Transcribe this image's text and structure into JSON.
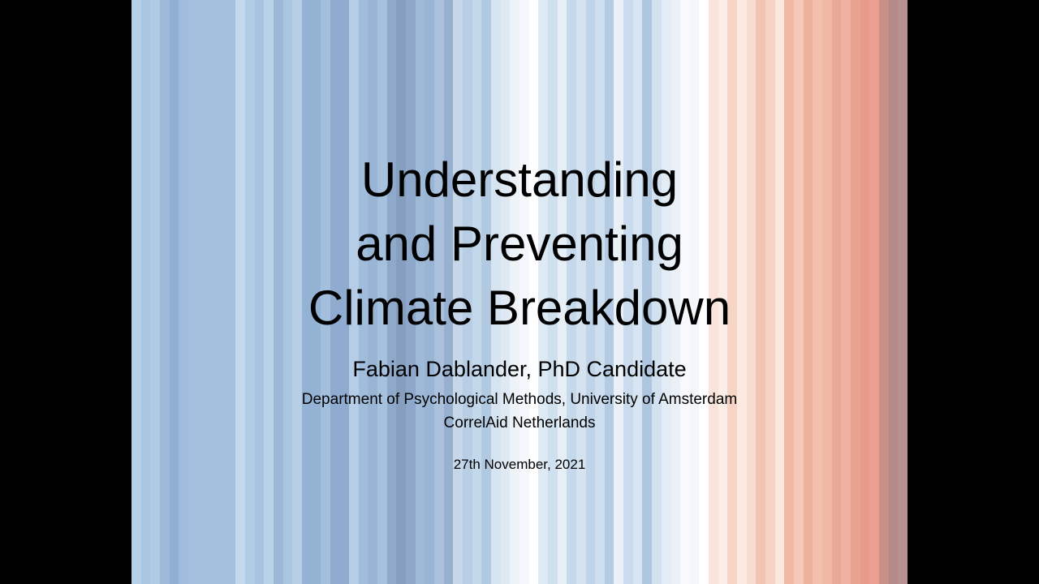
{
  "slide": {
    "title_lines": [
      "Understanding",
      "and Preventing",
      "Climate Breakdown"
    ],
    "author": "Fabian Dablander, PhD Candidate",
    "affiliations": [
      "Department of Psychological Methods, University of Amsterdam",
      "CorrelAid Netherlands"
    ],
    "date": "27th November, 2021"
  },
  "colors": {
    "letterbox": "#000000",
    "text": "#000000",
    "stripes": [
      "#b5cfe6",
      "#a9c6e0",
      "#afcbe4",
      "#9db9da",
      "#8fb0d3",
      "#9fbcdc",
      "#a3c0de",
      "#a3c0de",
      "#a3c0de",
      "#a3c0de",
      "#a3c0de",
      "#c3d8ec",
      "#b0cbe4",
      "#a7c3df",
      "#bad2e8",
      "#9cb8d9",
      "#a9c5e0",
      "#b7cfe6",
      "#94b2d4",
      "#94b2d4",
      "#a3bfdd",
      "#8fabd0",
      "#8fabd0",
      "#b5cde6",
      "#a1bddc",
      "#98b5d6",
      "#a6c1de",
      "#8fa9ca",
      "#879fbf",
      "#8da8cb",
      "#9fb9d9",
      "#9ab4d4",
      "#a9c1dc",
      "#98b0cf",
      "#c6d7ea",
      "#b8cee5",
      "#c4d8eb",
      "#b2c9e2",
      "#d6e4f1",
      "#dfe9f3",
      "#eef3f8",
      "#f4f7fb",
      "#ffffff",
      "#dde9f3",
      "#cfe0ee",
      "#e6eef6",
      "#c6d9ea",
      "#d5e3f0",
      "#bfd4e8",
      "#cddfee",
      "#b5cbe3",
      "#e9f0f6",
      "#c9dbec",
      "#d7e5f2",
      "#aec6df",
      "#d2e1ef",
      "#e2ecf5",
      "#eaf0f6",
      "#f7f9fc",
      "#f3f6fa",
      "#ffffff",
      "#f9e3da",
      "#fbeee8",
      "#f6d5c7",
      "#fce9e0",
      "#f7ddd1",
      "#f2c4b3",
      "#f6d3c4",
      "#fde8df",
      "#f0b9a5",
      "#f5c9b8",
      "#eeb19c",
      "#f3c0ad",
      "#f1b8a3",
      "#eaa896",
      "#f0b2a0",
      "#e8a390",
      "#e79c8b",
      "#ec9f90",
      "#c99088",
      "#b38a88",
      "#b99090"
    ]
  }
}
